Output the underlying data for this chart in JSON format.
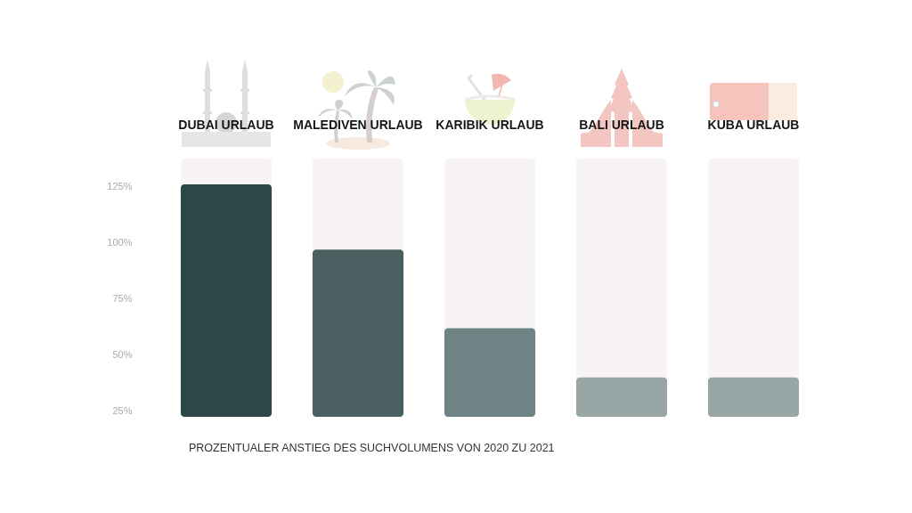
{
  "chart_data": {
    "type": "bar",
    "categories": [
      "DUBAI URLAUB",
      "MALEDIVEN URLAUB",
      "KARIBIK URLAUB",
      "BALI URLAUB",
      "KUBA URLAUB"
    ],
    "values": [
      126,
      97,
      62,
      40,
      40
    ],
    "colors": [
      "#2d4646",
      "#4a5f5f",
      "#6e8383",
      "#98a6a5",
      "#98a6a5"
    ],
    "ylim": [
      22.5,
      137.5
    ],
    "yticks": [
      {
        "value": 25,
        "label": "25%"
      },
      {
        "value": 50,
        "label": "50%"
      },
      {
        "value": 75,
        "label": "75%"
      },
      {
        "value": 100,
        "label": "100%"
      },
      {
        "value": 125,
        "label": "125%"
      }
    ],
    "annotations": [
      "PROZENTUALER ANSTIEG DES SUCHVOLUMENS VON 2020 ZU 2021"
    ]
  }
}
